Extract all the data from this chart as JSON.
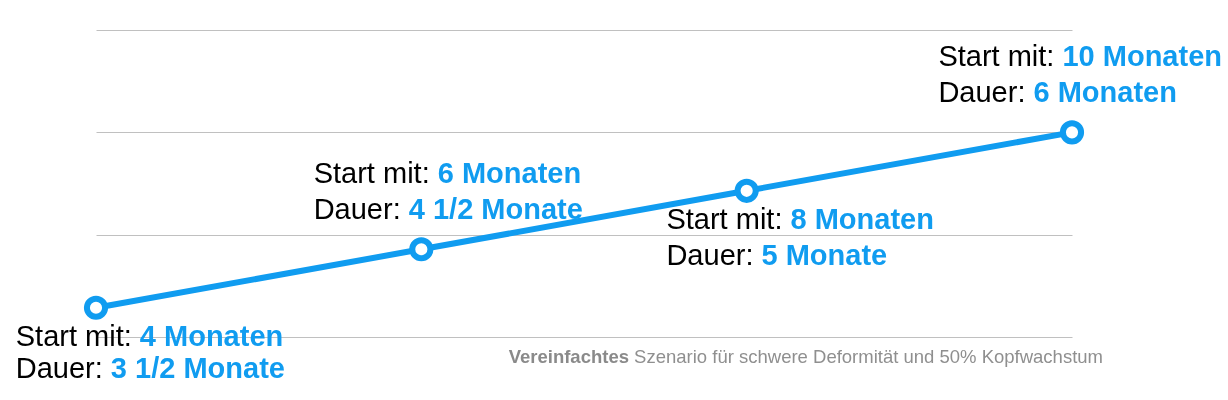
{
  "chart_data": {
    "type": "line",
    "categories": [
      null,
      null,
      null,
      null
    ],
    "series": [
      {
        "color": "#109cf0",
        "values": [
          4,
          6,
          8,
          10
        ],
        "value_labels": [
          "Start mit: 4 Monaten",
          "Start mit: 6 Monaten",
          "Start mit: 8 Monaten",
          "Start mit: 10 Monaten"
        ]
      }
    ],
    "ylim": [
      3,
      13.5
    ],
    "yticks": [
      {
        "value": 3,
        "label": null
      },
      {
        "value": 6.5,
        "label": null
      },
      {
        "value": 10,
        "label": null
      },
      {
        "value": 13.5,
        "label": null
      }
    ],
    "grid": "y",
    "marker": "circle",
    "line_style": "solid",
    "annotations": [
      "Dauer: 3 1/2 Monate",
      {
        "text": "Dauer: 4 1/2 Monate",
        "y": 6
      },
      {
        "text": "Dauer: 5 Monate",
        "y": 8
      },
      {
        "text": "Dauer: 6 Monaten",
        "y": 10
      },
      "Vereinfachtes Szenario für schwere Deformität und 50% Kopfwachstum"
    ]
  }
}
